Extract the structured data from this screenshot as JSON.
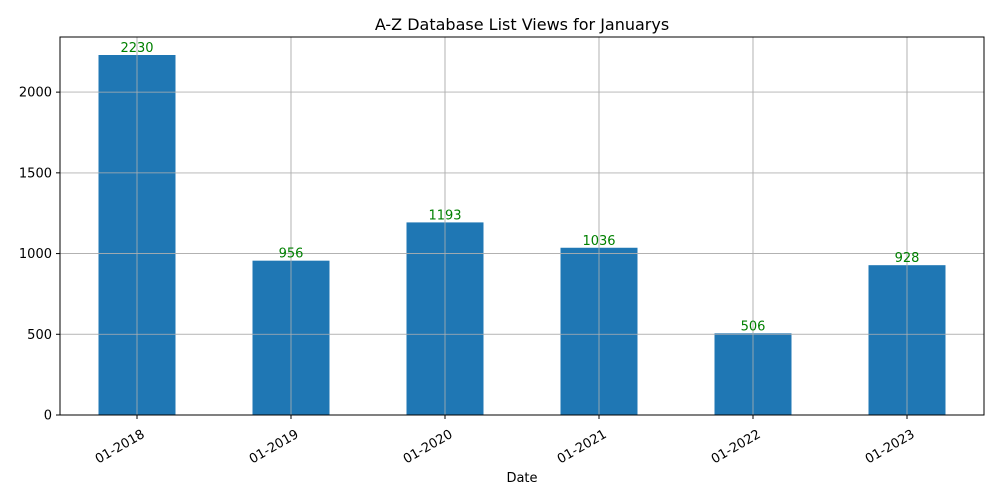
{
  "chart_data": {
    "type": "bar",
    "title": "A-Z Database List Views for Januarys",
    "xlabel": "Date",
    "ylabel": "",
    "categories": [
      "01-2018",
      "01-2019",
      "01-2020",
      "01-2021",
      "01-2022",
      "01-2023"
    ],
    "values": [
      2230,
      956,
      1193,
      1036,
      506,
      928
    ],
    "data_labels": [
      "2230",
      "956",
      "1193",
      "1036",
      "506",
      "928"
    ],
    "ylim": [
      0,
      2341.5
    ],
    "yticks": [
      0,
      500,
      1000,
      1500,
      2000
    ],
    "grid": true,
    "x_tick_rotation_deg": 30,
    "bar_color": "#1f77b4",
    "data_label_color": "#008000"
  }
}
